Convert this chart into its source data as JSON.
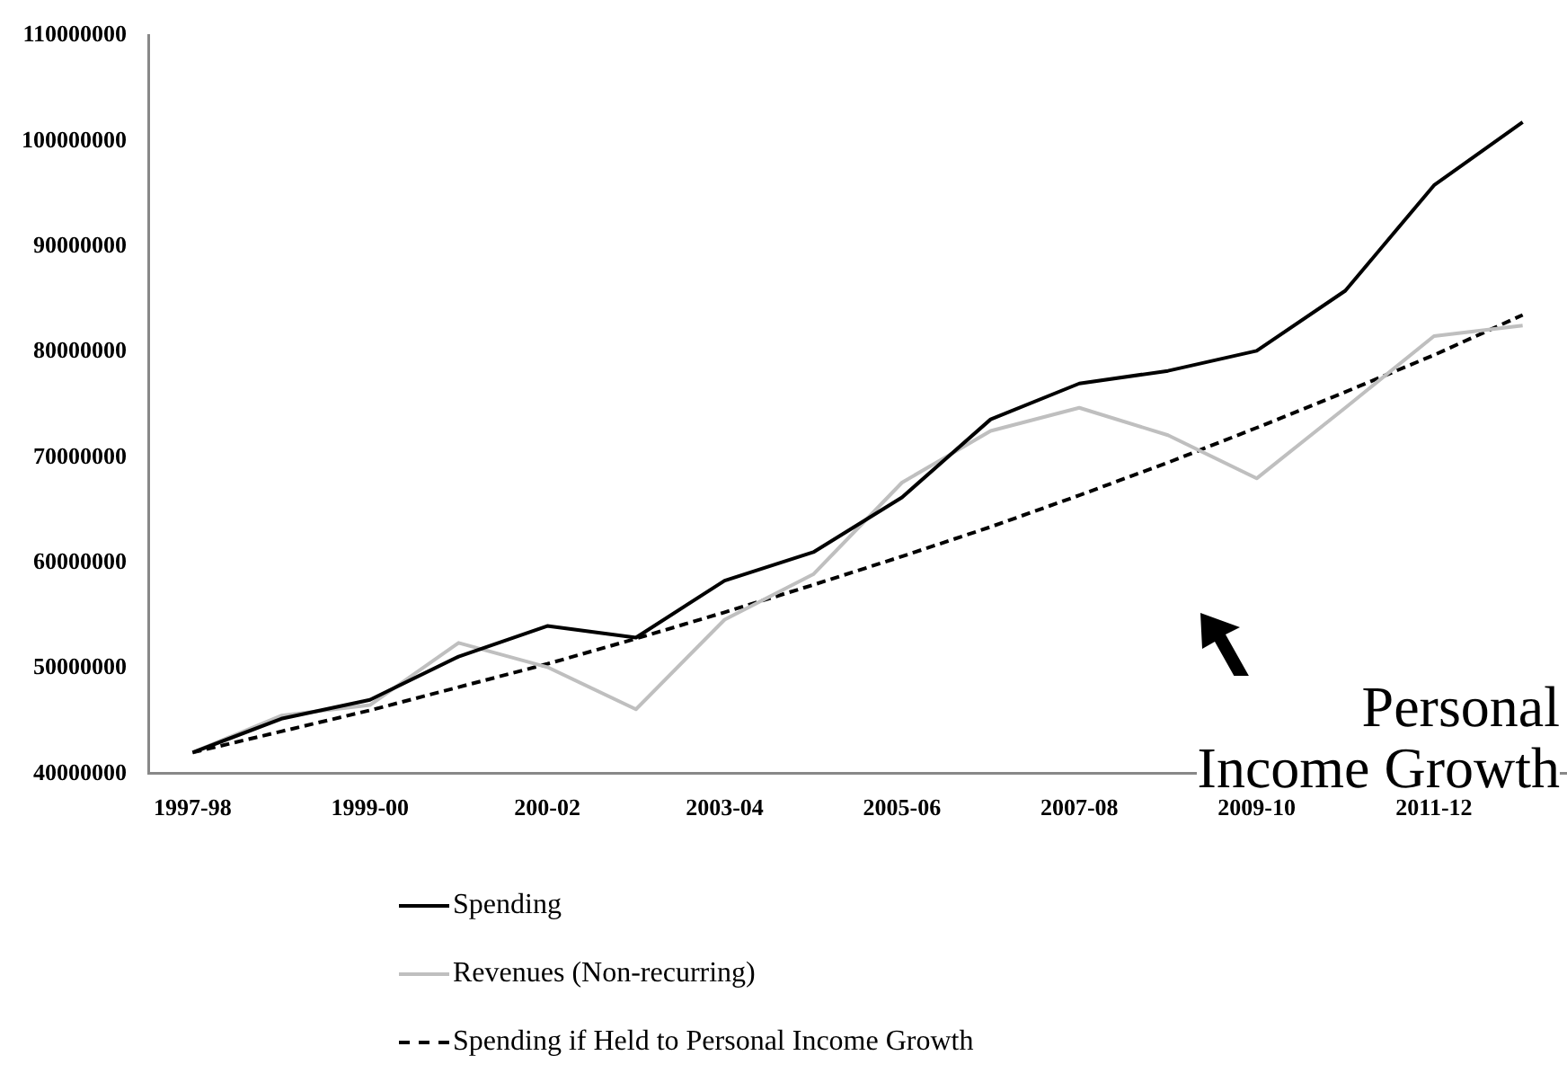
{
  "chart_data": {
    "type": "line",
    "categories": [
      "1997-98",
      null,
      "1999-00",
      null,
      "200-02",
      null,
      "2003-04",
      null,
      "2005-06",
      null,
      "2007-08",
      null,
      "2009-10",
      null,
      "2011-12",
      null
    ],
    "series": [
      {
        "name": "Spending",
        "color": "#000000",
        "line_style": "solid",
        "values": [
          42000000,
          45200000,
          47000000,
          51100000,
          54000000,
          52900000,
          58300000,
          61000000,
          66200000,
          73600000,
          77000000,
          78200000,
          80100000,
          85800000,
          95800000,
          101800000
        ]
      },
      {
        "name": "Revenues (Non-recurring)",
        "color": "#bfbfbf",
        "line_style": "solid",
        "values": [
          42000000,
          45500000,
          46500000,
          52400000,
          50100000,
          46100000,
          54600000,
          58900000,
          67600000,
          72500000,
          74700000,
          72100000,
          68000000,
          74700000,
          81500000,
          82500000
        ]
      },
      {
        "name": "Spending if Held to Personal Income Growth",
        "color": "#000000",
        "line_style": "dashed",
        "values": [
          42000000,
          44000000,
          46000000,
          48200000,
          50400000,
          52800000,
          55300000,
          57900000,
          60600000,
          63400000,
          66400000,
          69500000,
          72800000,
          76200000,
          79700000,
          83500000
        ]
      }
    ],
    "ylim": [
      40000000,
      110000000
    ],
    "yticks": [
      40000000,
      50000000,
      60000000,
      70000000,
      80000000,
      90000000,
      100000000,
      110000000
    ],
    "annotations": [
      "Personal Income Growth"
    ],
    "grid": false,
    "legend": "bottom",
    "marker": "none"
  }
}
